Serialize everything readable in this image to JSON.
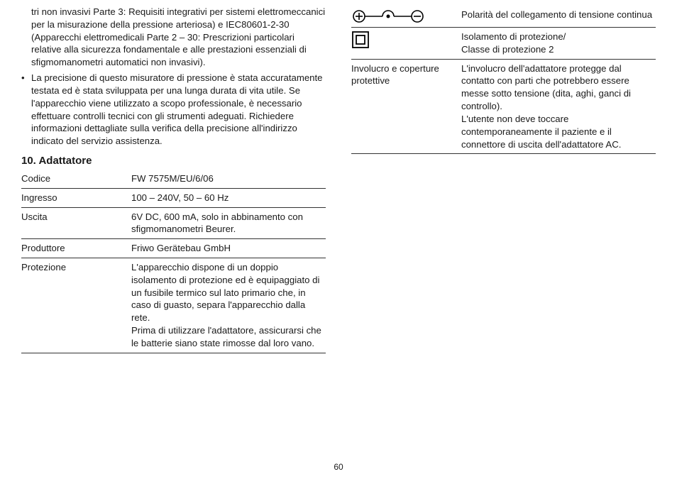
{
  "left": {
    "para1": "tri non invasivi Parte 3: Requisiti integrativi per sistemi elettromeccanici per la misurazione della pressione arteriosa) e IEC80601-2-30 (Apparecchi elettromedicali Parte 2 – 30: Prescrizioni particolari relative alla sicurezza fondamentale e alle prestazioni essenziali di sfigmomanometri automatici non invasivi).",
    "bullet": "La precisione di questo misuratore di pressione è stata accuratamente testata ed è stata sviluppata per una lunga durata di vita utile. Se l'apparecchio viene utilizzato a scopo professionale, è necessario effettuare controlli tecnici con gli strumenti adeguati. Richiedere informazioni dettagliate sulla verifica della precisione all'indirizzo indicato del servizio assistenza.",
    "heading": "10. Adattatore",
    "table": [
      {
        "label": "Codice",
        "value": "FW 7575M/EU/6/06"
      },
      {
        "label": "Ingresso",
        "value": "100 – 240V, 50 – 60 Hz"
      },
      {
        "label": "Uscita",
        "value": "6V DC, 600 mA, solo in abbinamento con sfigmomanometri Beurer."
      },
      {
        "label": "Produttore",
        "value": "Friwo Gerätebau GmbH"
      },
      {
        "label": "Protezione",
        "value": "L'apparecchio dispone di un doppio isolamento di protezione ed è equipaggiato di un fusibile termico sul lato primario che, in caso di guasto, separa l'apparecchio dalla rete.\nPrima di utilizzare l'adattatore, assicurarsi che le batterie siano state rimosse dal loro vano."
      }
    ]
  },
  "right": {
    "table": [
      {
        "symbol": "polarity",
        "label": "",
        "value": "Polarità del collegamento di tensione continua"
      },
      {
        "symbol": "class2",
        "label": "",
        "value": "Isolamento di protezione/\nClasse di protezione 2"
      },
      {
        "symbol": "",
        "label": "Involucro e coperture protettive",
        "value": "L'involucro dell'adattatore protegge dal contatto con parti che potrebbero essere messe sotto tensione (dita, aghi, ganci di controllo).\nL'utente non deve toccare contemporaneamente il paziente e il connettore di uscita dell'adattatore AC."
      }
    ]
  },
  "pagenum": "60"
}
